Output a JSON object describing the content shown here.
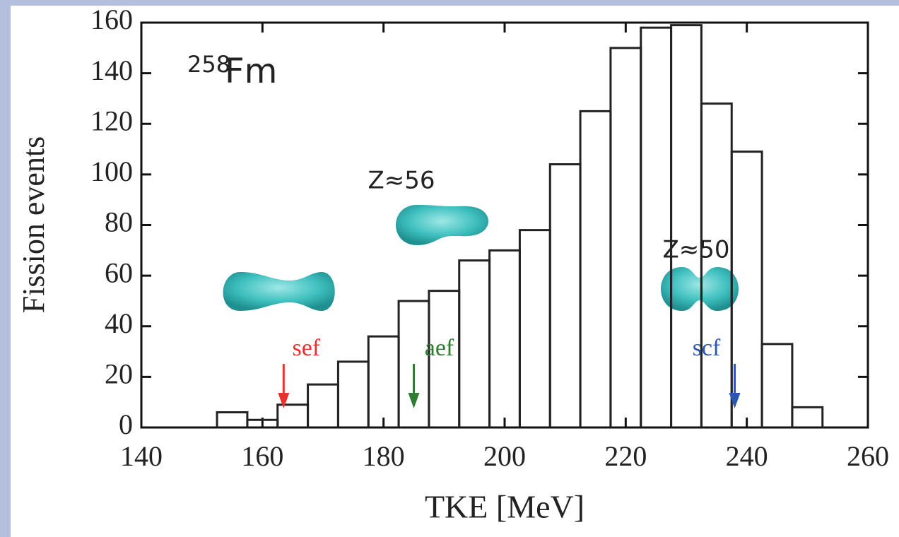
{
  "chart_data": {
    "type": "histogram",
    "xlabel": "TKE [MeV]",
    "ylabel": "Fission events",
    "isotope_mass": "258",
    "isotope_symbol": "Fm",
    "bins": [
      152.5,
      157.5,
      162.5,
      167.5,
      172.5,
      177.5,
      182.5,
      187.5,
      192.5,
      197.5,
      202.5,
      207.5,
      212.5,
      217.5,
      222.5,
      227.5,
      232.5,
      237.5,
      242.5,
      247.5,
      252.5
    ],
    "values": [
      6,
      3,
      9,
      17,
      26,
      36,
      50,
      54,
      66,
      70,
      78,
      104,
      125,
      150,
      158,
      159,
      128,
      109,
      33,
      8
    ],
    "color": "#222222",
    "xlim": [
      140,
      260
    ],
    "xticks": [
      140,
      160,
      180,
      200,
      220,
      240,
      260
    ],
    "ylim": [
      0,
      160
    ],
    "yticks": [
      0,
      20,
      40,
      60,
      80,
      100,
      120,
      140,
      160
    ],
    "annotations": [
      {
        "text": "sef",
        "x": 163.5,
        "color": "#e8312a"
      },
      {
        "text": "aef",
        "x": 185,
        "color": "#2e7d32"
      },
      {
        "text": "scf",
        "x": 238,
        "color": "#2a55b0"
      }
    ],
    "shape_labels": [
      {
        "text": "Z≈56",
        "color": "#2e8b3a"
      },
      {
        "text": "Z≈50",
        "color": "#2a55b0"
      }
    ]
  }
}
